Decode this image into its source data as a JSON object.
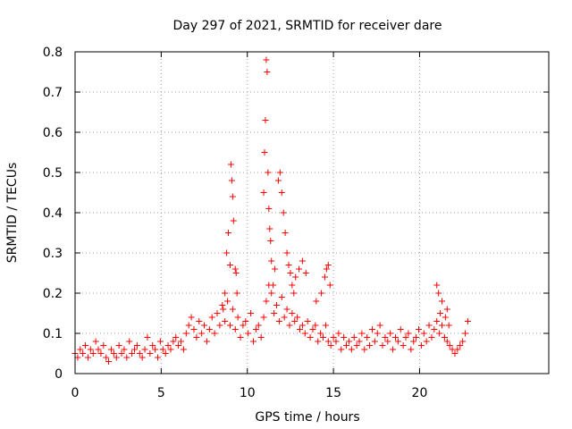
{
  "chart_data": {
    "type": "scatter",
    "title": "Day 297 of 2021, SRMTID for receiver dare",
    "xlabel": "GPS time / hours",
    "ylabel": "SRMTID / TECUs",
    "xlim": [
      0,
      27.5
    ],
    "ylim": [
      0,
      0.8
    ],
    "x_ticks": [
      0,
      5,
      10,
      15,
      20
    ],
    "y_ticks": [
      0,
      0.1,
      0.2,
      0.3,
      0.4,
      0.5,
      0.6,
      0.7,
      0.8
    ],
    "x_tick_labels": [
      "0",
      "5",
      "10",
      "15",
      "20"
    ],
    "y_tick_labels": [
      "0",
      "0.1",
      "0.2",
      "0.3",
      "0.4",
      "0.5",
      "0.6",
      "0.7",
      "0.8"
    ],
    "grid": true,
    "marker": "+",
    "color": "#ff0000",
    "series": [
      {
        "name": "SRMTID",
        "x": [
          0.0,
          0.15,
          0.3,
          0.45,
          0.6,
          0.75,
          0.9,
          1.05,
          1.2,
          1.35,
          1.5,
          1.65,
          1.8,
          1.95,
          2.1,
          2.25,
          2.4,
          2.55,
          2.7,
          2.85,
          3.0,
          3.15,
          3.3,
          3.45,
          3.6,
          3.75,
          3.9,
          4.05,
          4.2,
          4.35,
          4.5,
          4.65,
          4.8,
          4.95,
          5.1,
          5.25,
          5.4,
          5.55,
          5.7,
          5.85,
          6.0,
          6.15,
          6.3,
          6.45,
          6.6,
          6.75,
          6.9,
          7.05,
          7.2,
          7.35,
          7.5,
          7.65,
          7.8,
          7.95,
          8.1,
          8.25,
          8.4,
          8.55,
          8.7,
          8.85,
          9.0,
          9.15,
          9.3,
          9.45,
          9.6,
          9.75,
          9.9,
          10.05,
          10.2,
          10.35,
          10.5,
          10.65,
          10.8,
          10.95,
          11.1,
          11.25,
          11.4,
          11.55,
          11.7,
          11.85,
          12.0,
          12.15,
          12.3,
          12.45,
          12.6,
          12.75,
          12.9,
          13.05,
          13.2,
          13.35,
          13.5,
          13.65,
          13.8,
          13.95,
          14.1,
          14.25,
          14.4,
          14.55,
          14.7,
          14.85,
          15.0,
          15.15,
          15.3,
          15.45,
          15.6,
          15.75,
          15.9,
          16.05,
          16.2,
          16.35,
          16.5,
          16.65,
          16.8,
          16.95,
          17.1,
          17.25,
          17.4,
          17.55,
          17.7,
          17.85,
          18.0,
          18.15,
          18.3,
          18.45,
          18.6,
          18.75,
          18.9,
          19.05,
          19.2,
          19.35,
          19.5,
          19.65,
          19.8,
          19.95,
          20.1,
          20.25,
          20.4,
          20.55,
          20.7,
          20.85,
          21.0,
          21.15,
          21.3,
          21.45,
          21.6,
          21.75,
          21.9,
          22.05,
          22.2,
          22.35,
          22.5,
          22.65,
          22.8,
          8.6,
          8.7,
          8.8,
          8.9,
          9.0,
          9.05,
          9.1,
          9.15,
          9.2,
          9.3,
          9.35,
          9.4,
          10.95,
          11.0,
          11.05,
          11.1,
          11.15,
          11.2,
          11.25,
          11.3,
          11.35,
          11.4,
          11.5,
          11.6,
          11.8,
          11.9,
          12.0,
          12.1,
          12.2,
          12.3,
          12.4,
          12.5,
          12.6,
          12.7,
          12.8,
          13.0,
          13.2,
          13.4,
          14.0,
          14.3,
          14.5,
          14.6,
          14.7,
          14.8,
          21.0,
          21.1,
          21.2,
          21.3,
          21.5,
          21.6,
          21.7
        ],
        "y": [
          0.05,
          0.04,
          0.06,
          0.05,
          0.07,
          0.04,
          0.06,
          0.05,
          0.08,
          0.06,
          0.05,
          0.07,
          0.04,
          0.03,
          0.06,
          0.05,
          0.04,
          0.07,
          0.05,
          0.06,
          0.04,
          0.08,
          0.05,
          0.06,
          0.07,
          0.05,
          0.04,
          0.06,
          0.09,
          0.05,
          0.07,
          0.06,
          0.04,
          0.08,
          0.06,
          0.05,
          0.07,
          0.06,
          0.08,
          0.09,
          0.07,
          0.08,
          0.06,
          0.1,
          0.12,
          0.14,
          0.11,
          0.09,
          0.13,
          0.1,
          0.12,
          0.08,
          0.11,
          0.14,
          0.1,
          0.15,
          0.12,
          0.17,
          0.13,
          0.18,
          0.12,
          0.16,
          0.11,
          0.14,
          0.09,
          0.12,
          0.13,
          0.1,
          0.15,
          0.08,
          0.11,
          0.12,
          0.09,
          0.14,
          0.18,
          0.22,
          0.2,
          0.15,
          0.17,
          0.13,
          0.19,
          0.14,
          0.16,
          0.12,
          0.15,
          0.13,
          0.14,
          0.11,
          0.12,
          0.1,
          0.13,
          0.09,
          0.11,
          0.12,
          0.08,
          0.1,
          0.09,
          0.12,
          0.08,
          0.07,
          0.09,
          0.08,
          0.1,
          0.06,
          0.09,
          0.07,
          0.08,
          0.06,
          0.09,
          0.07,
          0.08,
          0.1,
          0.06,
          0.09,
          0.07,
          0.11,
          0.08,
          0.1,
          0.12,
          0.07,
          0.09,
          0.08,
          0.1,
          0.06,
          0.09,
          0.08,
          0.11,
          0.07,
          0.09,
          0.1,
          0.06,
          0.08,
          0.09,
          0.11,
          0.07,
          0.1,
          0.08,
          0.12,
          0.09,
          0.11,
          0.13,
          0.1,
          0.12,
          0.09,
          0.08,
          0.07,
          0.06,
          0.05,
          0.06,
          0.07,
          0.08,
          0.1,
          0.13,
          0.16,
          0.2,
          0.3,
          0.35,
          0.27,
          0.52,
          0.48,
          0.44,
          0.38,
          0.26,
          0.25,
          0.2,
          0.45,
          0.55,
          0.63,
          0.78,
          0.75,
          0.5,
          0.41,
          0.36,
          0.33,
          0.28,
          0.22,
          0.26,
          0.48,
          0.5,
          0.45,
          0.4,
          0.35,
          0.3,
          0.27,
          0.25,
          0.22,
          0.2,
          0.24,
          0.26,
          0.28,
          0.25,
          0.18,
          0.2,
          0.24,
          0.26,
          0.27,
          0.22,
          0.22,
          0.2,
          0.15,
          0.18,
          0.14,
          0.16,
          0.12
        ]
      }
    ]
  }
}
